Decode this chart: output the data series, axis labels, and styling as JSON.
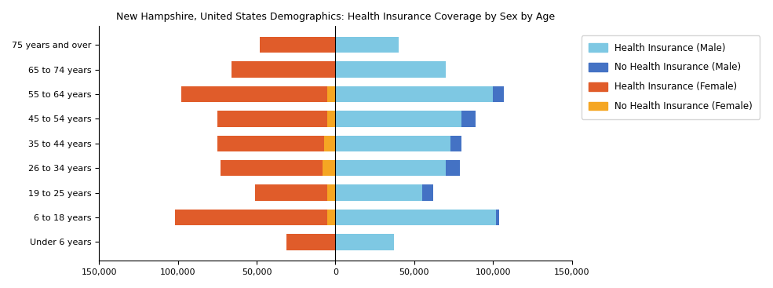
{
  "age_groups": [
    "Under 6 years",
    "6 to 18 years",
    "19 to 25 years",
    "26 to 34 years",
    "35 to 44 years",
    "45 to 54 years",
    "55 to 64 years",
    "65 to 74 years",
    "75 years and over"
  ],
  "health_ins_male": [
    37000,
    102000,
    55000,
    70000,
    73000,
    80000,
    100000,
    70000,
    40000
  ],
  "no_health_ins_male": [
    0,
    2000,
    7000,
    9000,
    7000,
    9000,
    7000,
    0,
    0
  ],
  "health_ins_female": [
    31000,
    97000,
    46000,
    65000,
    68000,
    70000,
    93000,
    66000,
    48000
  ],
  "no_health_ins_female": [
    0,
    5000,
    5000,
    8000,
    7000,
    5000,
    5000,
    0,
    0
  ],
  "colors": {
    "health_ins_male": "#7EC8E3",
    "no_health_ins_male": "#4472C4",
    "health_ins_female": "#E05C2A",
    "no_health_ins_female": "#F5A623"
  },
  "title": "New Hampshire, United States Demographics: Health Insurance Coverage by Sex by Age",
  "xlim": 150000,
  "xtick_labels": [
    "150,000",
    "100,000",
    "50,000",
    "0",
    "50,000",
    "100,000",
    "150,000"
  ],
  "xtick_values": [
    -150000,
    -100000,
    -50000,
    0,
    50000,
    100000,
    150000
  ],
  "legend_labels": [
    "Health Insurance (Male)",
    "No Health Insurance (Male)",
    "Health Insurance (Female)",
    "No Health Insurance (Female)"
  ],
  "legend_colors": [
    "#7EC8E3",
    "#4472C4",
    "#E05C2A",
    "#F5A623"
  ]
}
